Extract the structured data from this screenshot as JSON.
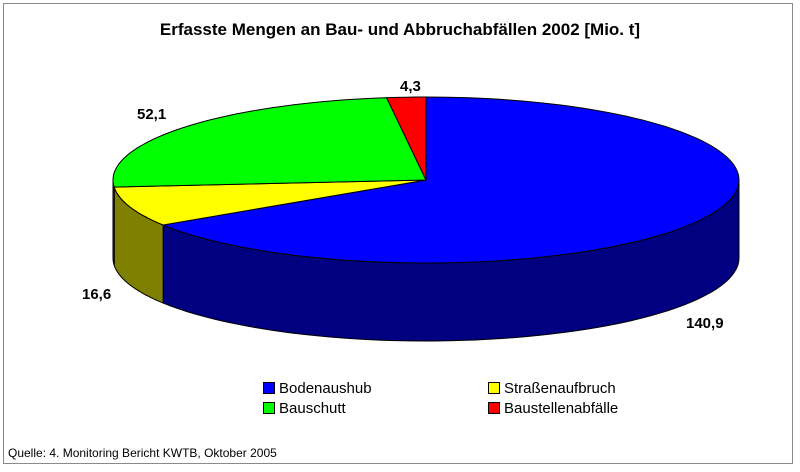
{
  "chart_data": {
    "type": "pie",
    "style": "3d",
    "title": "Erfasste Mengen an Bau- und Abbruchabfällen 2002 [Mio. t]",
    "categories": [
      "Bodenaushub",
      "Straßenaufbruch",
      "Bauschutt",
      "Baustellenabfälle"
    ],
    "values": [
      140.9,
      16.6,
      52.1,
      4.3
    ],
    "value_labels": [
      "140,9",
      "16,6",
      "52,1",
      "4,3"
    ],
    "colors": [
      "#0000FF",
      "#FFFF00",
      "#00FF00",
      "#FF0000"
    ],
    "side_colors": [
      "#000080",
      "#808000",
      "#008000",
      "#800000"
    ],
    "start": "top, clockwise",
    "legend_position": "bottom"
  },
  "legend": [
    {
      "label": "Bodenaushub",
      "color": "#0000FF"
    },
    {
      "label": "Straßenaufbruch",
      "color": "#FFFF00"
    },
    {
      "label": "Bauschutt",
      "color": "#00FF00"
    },
    {
      "label": "Baustellenabfälle",
      "color": "#FF0000"
    }
  ],
  "source": "Quelle: 4. Monitoring Bericht KWTB, Oktober 2005"
}
